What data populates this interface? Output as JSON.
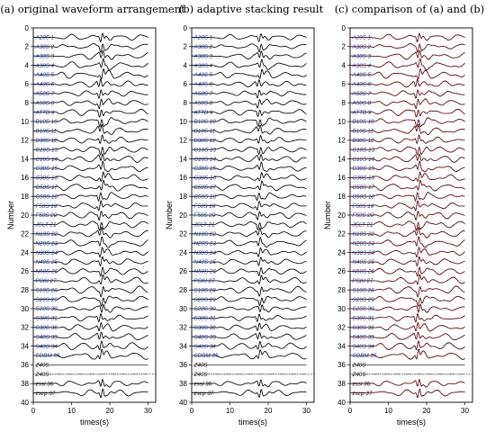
{
  "chart_data": [
    {
      "type": "line",
      "title": "(a) original waveform arrangement",
      "xlabel": "times(s)",
      "ylabel": "Number",
      "xlim": [
        0,
        32
      ],
      "ylim": [
        0,
        40
      ],
      "x_ticks": [
        0,
        10,
        20,
        30
      ],
      "y_ticks": [
        0,
        2,
        4,
        6,
        8,
        10,
        12,
        14,
        16,
        18,
        20,
        22,
        24,
        26,
        28,
        30,
        32,
        34,
        36,
        38,
        40
      ],
      "series_colors": [
        "#000000"
      ]
    },
    {
      "type": "line",
      "title": "(b) adaptive stacking result",
      "xlabel": "times(s)",
      "ylabel": "Number",
      "xlim": [
        0,
        32
      ],
      "ylim": [
        0,
        40
      ],
      "x_ticks": [
        0,
        10,
        20,
        30
      ],
      "y_ticks": [
        0,
        2,
        4,
        6,
        8,
        10,
        12,
        14,
        16,
        18,
        20,
        22,
        24,
        26,
        28,
        30,
        32,
        34,
        36,
        38,
        40
      ],
      "series_colors": [
        "#000000"
      ]
    },
    {
      "type": "line",
      "title": "(c) comparison of (a) and (b)",
      "xlabel": "times(s)",
      "ylabel": "Number",
      "xlim": [
        0,
        32
      ],
      "ylim": [
        0,
        40
      ],
      "x_ticks": [
        0,
        10,
        20,
        30
      ],
      "y_ticks": [
        0,
        2,
        4,
        6,
        8,
        10,
        12,
        14,
        16,
        18,
        20,
        22,
        24,
        26,
        28,
        30,
        32,
        34,
        36,
        38,
        40
      ],
      "series_colors": [
        "#000000",
        "#d62728"
      ]
    }
  ],
  "stations": [
    {
      "n": 1,
      "label": "A20S 1"
    },
    {
      "n": 2,
      "label": "A30S 2"
    },
    {
      "n": 3,
      "label": "A30S 3"
    },
    {
      "n": 4,
      "label": "A30S 4"
    },
    {
      "n": 5,
      "label": "A40S 5"
    },
    {
      "n": 6,
      "label": "A40S 6"
    },
    {
      "n": 7,
      "label": "A50S 7"
    },
    {
      "n": 8,
      "label": "A50S 8"
    },
    {
      "n": 9,
      "label": "ATTB 9"
    },
    {
      "n": 10,
      "label": "B10S 10"
    },
    {
      "n": 11,
      "label": "B19S 11"
    },
    {
      "n": 12,
      "label": "B30S 12"
    },
    {
      "n": 13,
      "label": "C10S 13"
    },
    {
      "n": 14,
      "label": "C10S 14"
    },
    {
      "n": 15,
      "label": "C30S 15"
    },
    {
      "n": 16,
      "label": "C30S 16"
    },
    {
      "n": 17,
      "label": "C50S 17"
    },
    {
      "n": 18,
      "label": "C50S 18"
    },
    {
      "n": 19,
      "label": "F50S 19"
    },
    {
      "n": 20,
      "label": "F50S 20"
    },
    {
      "n": 21,
      "label": "JSLT 21"
    },
    {
      "n": 22,
      "label": "N10S 22"
    },
    {
      "n": 23,
      "label": "N20S 23"
    },
    {
      "n": 24,
      "label": "N30S 24"
    },
    {
      "n": 25,
      "label": "N40S 25"
    },
    {
      "n": 26,
      "label": "N50S 26"
    },
    {
      "n": 27,
      "label": "PSKI 27"
    },
    {
      "n": 28,
      "label": "S10S 28"
    },
    {
      "n": 29,
      "label": "S20S 29"
    },
    {
      "n": 30,
      "label": "S20S 30"
    },
    {
      "n": 31,
      "label": "S30S 31"
    },
    {
      "n": 32,
      "label": "S30S 32"
    },
    {
      "n": 33,
      "label": "S40S 33"
    },
    {
      "n": 34,
      "label": "S40S 34"
    },
    {
      "n": 35,
      "label": "SDBM 35"
    },
    {
      "n": 36,
      "label": "Z40S"
    },
    {
      "n": 37,
      "label": "Z40S"
    },
    {
      "n": 38,
      "label": "zssl 36"
    },
    {
      "n": 39,
      "label": "zscp 37"
    }
  ]
}
